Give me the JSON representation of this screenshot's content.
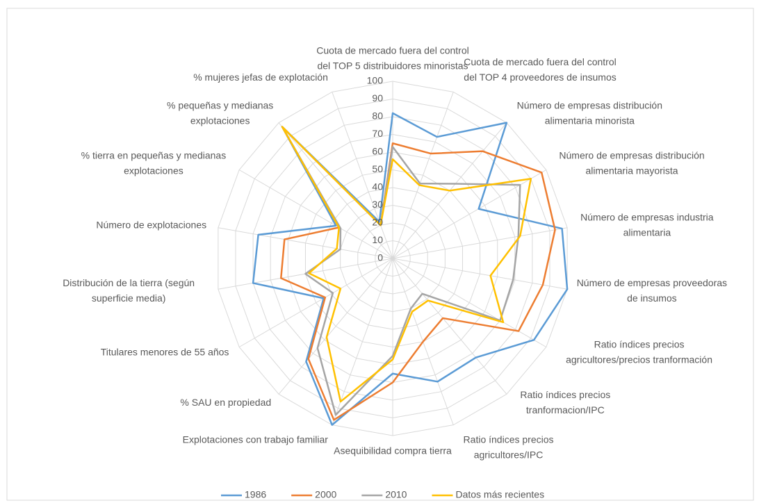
{
  "chart_data": {
    "type": "radar",
    "categories": [
      [
        "Cuota de mercado fuera del control",
        "del TOP 5 distribuidores minoristas"
      ],
      [
        "Cuota de mercado fuera del control",
        "del TOP 4 proveedores de insumos"
      ],
      [
        "Número de empresas distribución",
        "alimentaria minorista"
      ],
      [
        "Número de empresas distribución",
        "alimentaria mayorista"
      ],
      [
        "Número de empresas industria",
        "alimentaria"
      ],
      [
        "Número de empresas proveedoras",
        "de insumos"
      ],
      [
        "Ratio índices precios",
        "agricultores/precios tranformación"
      ],
      [
        "Ratio índices precios",
        "tranformacion/IPC"
      ],
      [
        "Ratio índices precios",
        "agricultores/IPC"
      ],
      [
        "Asequibilidad compra tierra"
      ],
      [
        "Explotaciones con trabajo familiar"
      ],
      [
        "% SAU en propiedad"
      ],
      [
        "Titulares menores de 55 años"
      ],
      [
        "Distribución de la tierra (según",
        "superficie media)"
      ],
      [
        "Número de explotaciones"
      ],
      [
        "% tierra en pequeñas y medianas",
        "explotaciones"
      ],
      [
        "% pequeñas y medianas",
        "explotaciones"
      ],
      [
        "% mujeres jefas de explotación"
      ]
    ],
    "series": [
      {
        "name": "1986",
        "color": "#5b9bd5",
        "values": [
          82,
          73,
          100,
          56,
          97,
          100,
          92,
          73,
          74,
          65,
          100,
          76,
          45,
          80,
          77,
          37,
          97,
          22
        ]
      },
      {
        "name": "2000",
        "color": "#ed7d31",
        "values": [
          65,
          63,
          79,
          97,
          93,
          86,
          82,
          44,
          50,
          70,
          97,
          74,
          44,
          64,
          62,
          35,
          97,
          20
        ]
      },
      {
        "name": "2010",
        "color": "#a5a5a5",
        "values": [
          63,
          45,
          55,
          83,
          72,
          69,
          70,
          26,
          30,
          55,
          94,
          66,
          39,
          50,
          30,
          34,
          97,
          20
        ]
      },
      {
        "name": "Datos más recientes",
        "color": "#ffc000",
        "values": [
          56,
          44,
          50,
          90,
          73,
          56,
          72,
          31,
          32,
          57,
          86,
          58,
          34,
          48,
          32,
          35,
          97,
          20
        ]
      }
    ],
    "ylim": [
      0,
      100
    ],
    "yticks": [
      0,
      10,
      20,
      30,
      40,
      50,
      60,
      70,
      80,
      90,
      100
    ],
    "grid": true,
    "legend": "bottom"
  }
}
